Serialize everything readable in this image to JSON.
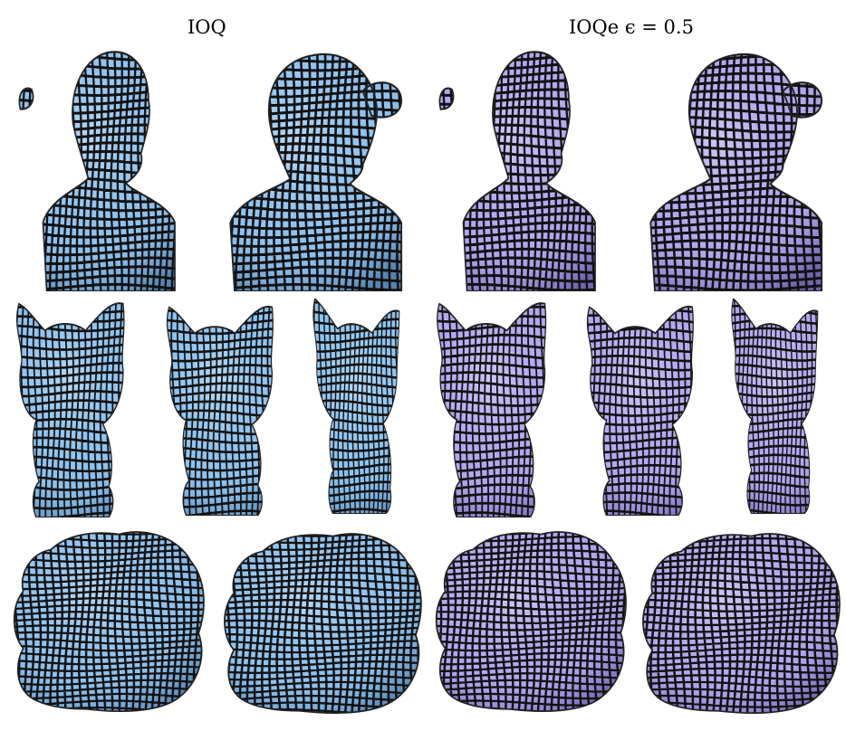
{
  "figure": {
    "columns": [
      {
        "title": "IOQ",
        "mesh_color": "#8ec3ef",
        "shade_color": "#3f6f9c"
      },
      {
        "title": "IOQe ϵ = 0.5",
        "mesh_color": "#b3a8ef",
        "shade_color": "#5a4f9a"
      }
    ],
    "rows": [
      {
        "model": "bust",
        "views": 2
      },
      {
        "model": "cat",
        "views": 3
      },
      {
        "model": "statue",
        "views": 2
      }
    ],
    "grid_color": "#111111"
  }
}
